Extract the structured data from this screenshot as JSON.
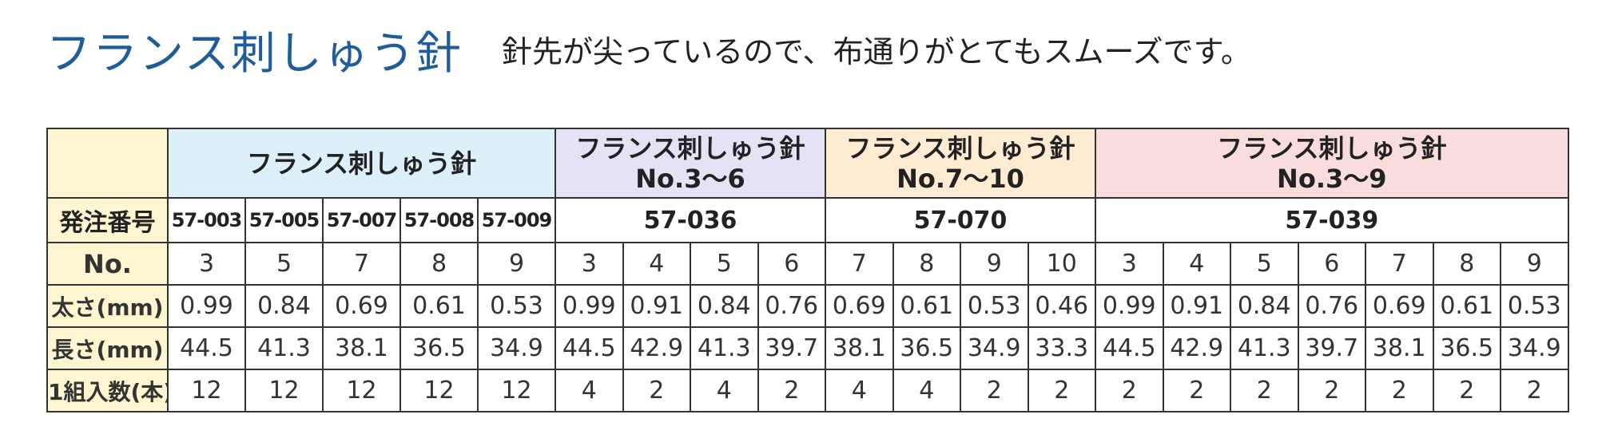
{
  "header": {
    "title": "フランス刺しゅう針",
    "subtitle": "針先が尖っているので、布通りがとてもスムーズです。"
  },
  "table": {
    "groups": [
      {
        "title": "フランス刺しゅう針",
        "subtitle": null,
        "color": "#dcf0fa",
        "codes": [
          "57-003",
          "57-005",
          "57-007",
          "57-008",
          "57-009"
        ],
        "span": 5
      },
      {
        "title": "フランス刺しゅう針",
        "subtitle": "No.3〜6",
        "color": "#e3e3f5",
        "codes": [
          "57-036"
        ],
        "span": 4
      },
      {
        "title": "フランス刺しゅう針",
        "subtitle": "No.7〜10",
        "color": "#fdebd2",
        "codes": [
          "57-070"
        ],
        "span": 4
      },
      {
        "title": "フランス刺しゅう針",
        "subtitle": "No.3〜9",
        "color": "#f9dcdc",
        "codes": [
          "57-039"
        ],
        "span": 7
      }
    ],
    "code_label": "発注番号",
    "rows": [
      {
        "label": "No.",
        "cells": [
          "3",
          "5",
          "7",
          "8",
          "9",
          "3",
          "4",
          "5",
          "6",
          "7",
          "8",
          "9",
          "10",
          "3",
          "4",
          "5",
          "6",
          "7",
          "8",
          "9"
        ]
      },
      {
        "label": "太さ(mm)",
        "cells": [
          "0.99",
          "0.84",
          "0.69",
          "0.61",
          "0.53",
          "0.99",
          "0.91",
          "0.84",
          "0.76",
          "0.69",
          "0.61",
          "0.53",
          "0.46",
          "0.99",
          "0.91",
          "0.84",
          "0.76",
          "0.69",
          "0.61",
          "0.53"
        ]
      },
      {
        "label": "長さ(mm)",
        "cells": [
          "44.5",
          "41.3",
          "38.1",
          "36.5",
          "34.9",
          "44.5",
          "42.9",
          "41.3",
          "39.7",
          "38.1",
          "36.5",
          "34.9",
          "33.3",
          "44.5",
          "42.9",
          "41.3",
          "39.7",
          "38.1",
          "36.5",
          "34.9"
        ]
      },
      {
        "label": "1組入数(本)",
        "cells": [
          "12",
          "12",
          "12",
          "12",
          "12",
          "4",
          "2",
          "4",
          "2",
          "4",
          "4",
          "2",
          "2",
          "2",
          "2",
          "2",
          "2",
          "2",
          "2",
          "2"
        ]
      }
    ]
  }
}
